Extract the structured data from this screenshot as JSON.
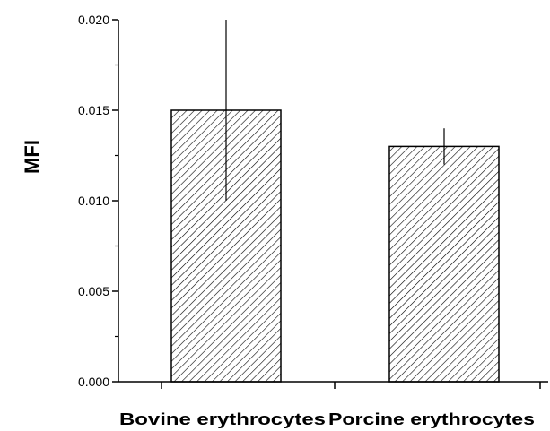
{
  "chart_data": {
    "type": "bar",
    "title": "",
    "xlabel": "",
    "ylabel": "MFI",
    "ylim": [
      0,
      0.02
    ],
    "yticks": [
      "0.000",
      "0.005",
      "0.010",
      "0.015",
      "0.020"
    ],
    "categories": [
      "Bovine erythrocytes",
      "Porcine erythrocytes"
    ],
    "values": [
      0.015,
      0.013
    ],
    "error_high": [
      0.02,
      0.014
    ],
    "error_low": [
      0.01,
      0.012
    ],
    "grid": false,
    "legend": "none",
    "bar_fill": "hatched",
    "colors": {
      "bar_stroke": "#000000",
      "hatch": "#000000",
      "axis": "#000000",
      "background": "#ffffff"
    }
  }
}
